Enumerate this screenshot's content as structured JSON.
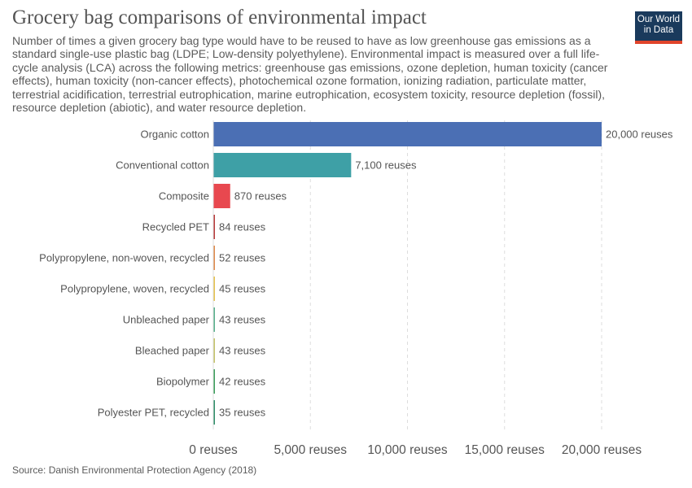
{
  "title": "Grocery bag comparisons of environmental impact",
  "subtitle": "Number of times a given grocery bag type would have to be reused to have as low greenhouse gas emissions as a standard single-use plastic bag (LDPE; Low-density polyethylene). Environmental impact is measured over a full life-cycle analysis (LCA) across the following metrics: greenhouse gas emissions, ozone depletion, human toxicity (cancer effects), human toxicity (non-cancer effects), photochemical ozone formation, ionizing radiation, particulate matter, terrestrial acidification, terrestrial eutrophication, marine eutrophication, ecosystem toxicity, resource depletion (fossil), resource depletion (abiotic), and water resource depletion.",
  "logo": {
    "line1": "Our World",
    "line2": "in Data"
  },
  "source": "Source: Danish Environmental Protection Agency (2018)",
  "chart_data": {
    "type": "bar",
    "orientation": "horizontal",
    "categories": [
      "Organic cotton",
      "Conventional cotton",
      "Composite",
      "Recycled PET",
      "Polypropylene, non-woven, recycled",
      "Polypropylene, woven, recycled",
      "Unbleached paper",
      "Bleached paper",
      "Biopolymer",
      "Polyester PET, recycled"
    ],
    "values": [
      20000,
      7100,
      870,
      84,
      52,
      45,
      43,
      43,
      42,
      35
    ],
    "value_labels": [
      "20,000 reuses",
      "7,100 reuses",
      "870 reuses",
      "84 reuses",
      "52 reuses",
      "45 reuses",
      "43 reuses",
      "43 reuses",
      "42 reuses",
      "35 reuses"
    ],
    "colors": [
      "#4b6fb4",
      "#3ea0a6",
      "#e8484f",
      "#b83b3b",
      "#e08a4c",
      "#e6c24f",
      "#58b08c",
      "#c5c36a",
      "#3c9e5c",
      "#2f8f6a"
    ],
    "xlim": [
      0,
      20000
    ],
    "xticks": [
      0,
      5000,
      10000,
      15000,
      20000
    ],
    "xtick_labels": [
      "0 reuses",
      "5,000 reuses",
      "10,000 reuses",
      "15,000 reuses",
      "20,000 reuses"
    ],
    "grid": "vertical dashed"
  }
}
